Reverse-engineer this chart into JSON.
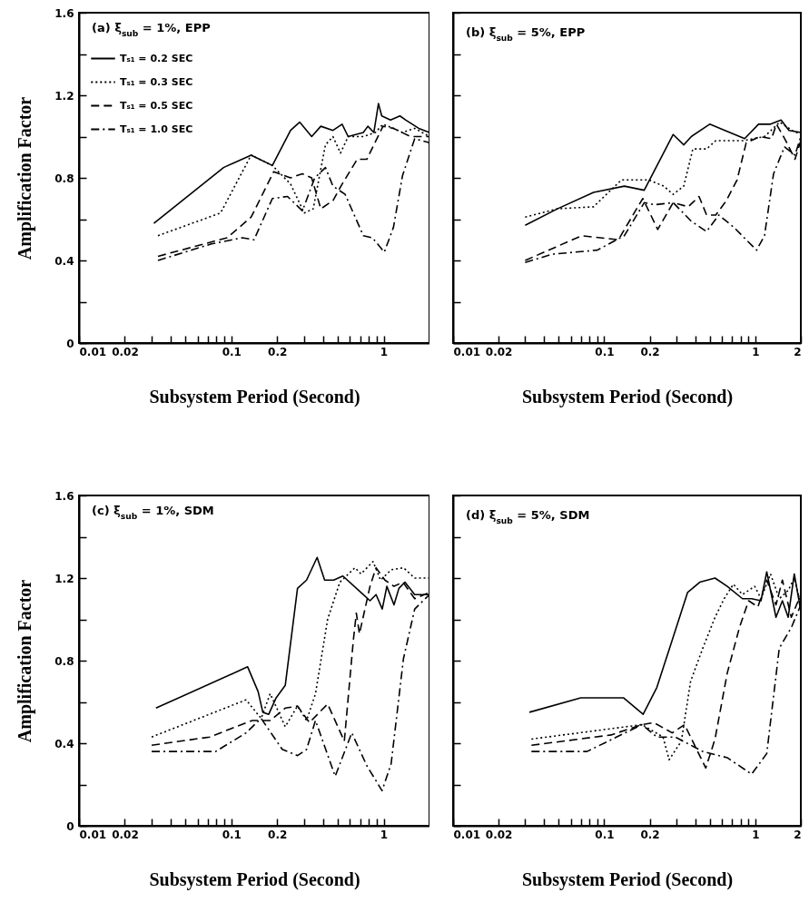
{
  "chart_data": [
    {
      "type": "line",
      "title": "(a) ξ$_{sub}$ = 1%, EPP",
      "xlabel": "Subsystem Period (Second)",
      "ylabel": "Amplification Factor",
      "log": "x",
      "legend": "top left",
      "xlim": [
        0.01,
        2
      ],
      "ylim": [
        0,
        1.6
      ],
      "xticks": [
        0.01,
        0.02,
        {
          "value": 0.03,
          "label": null
        },
        {
          "value": 0.04,
          "label": null
        },
        {
          "value": 0.05,
          "label": null
        },
        {
          "value": 0.06,
          "label": null
        },
        {
          "value": 0.07,
          "label": null
        },
        {
          "value": 0.08,
          "label": null
        },
        {
          "value": 0.09,
          "label": null
        },
        0.1,
        0.2,
        {
          "value": 0.3,
          "label": null
        },
        {
          "value": 0.4,
          "label": null
        },
        {
          "value": 0.5,
          "label": null
        },
        {
          "value": 0.6,
          "label": null
        },
        {
          "value": 0.7,
          "label": null
        },
        {
          "value": 0.8,
          "label": null
        },
        {
          "value": 0.9,
          "label": null
        },
        1
      ],
      "yticks": [
        0,
        {
          "value": 0.2,
          "label": null
        },
        0.4,
        {
          "value": 0.6,
          "label": null
        },
        0.8,
        {
          "value": 1.0,
          "label": null
        },
        1.2,
        {
          "value": 1.4,
          "label": null
        },
        1.6
      ],
      "series": [
        {
          "name": "Tₛ₁ = 0.2 SEC",
          "color": "#000000",
          "line_style": "solid",
          "x": [
            0.031,
            0.089,
            0.135,
            0.186,
            0.245,
            0.281,
            0.337,
            0.387,
            0.465,
            0.534,
            0.585,
            0.736,
            0.788,
            0.863,
            0.925,
            0.972,
            1.11,
            1.28,
            1.4,
            1.7,
            2
          ],
          "values": [
            0.58,
            0.85,
            0.91,
            0.86,
            1.03,
            1.07,
            1.0,
            1.05,
            1.03,
            1.06,
            1.0,
            1.02,
            1.05,
            1.02,
            1.16,
            1.1,
            1.08,
            1.1,
            1.08,
            1.04,
            1.02
          ]
        },
        {
          "name": "Tₛ₁ = 0.3 SEC",
          "color": "#000000",
          "line_style": "dotted",
          "x": [
            0.033,
            0.085,
            0.135,
            0.186,
            0.245,
            0.301,
            0.345,
            0.415,
            0.465,
            0.521,
            0.585,
            0.736,
            0.884,
            0.99,
            1.16,
            1.33,
            1.6,
            2
          ],
          "values": [
            0.52,
            0.63,
            0.91,
            0.86,
            0.77,
            0.63,
            0.65,
            0.96,
            1.0,
            0.92,
            1.0,
            1.0,
            1.02,
            1.06,
            1.04,
            1.02,
            1.04,
            1.0
          ]
        },
        {
          "name": "Tₛ₁ = 0.5 SEC",
          "color": "#000000",
          "line_style": "dashed",
          "x": [
            0.033,
            0.094,
            0.135,
            0.19,
            0.245,
            0.293,
            0.337,
            0.387,
            0.465,
            0.534,
            0.671,
            0.776,
            0.99,
            1.16,
            1.5,
            2
          ],
          "values": [
            0.42,
            0.51,
            0.61,
            0.83,
            0.8,
            0.82,
            0.8,
            0.65,
            0.69,
            0.77,
            0.89,
            0.89,
            1.05,
            1.04,
            1.0,
            1.0
          ]
        },
        {
          "name": "Tₛ₁ = 1.0 SEC",
          "color": "#000000",
          "line_style": "dashdot",
          "x": [
            0.033,
            0.074,
            0.118,
            0.141,
            0.186,
            0.234,
            0.293,
            0.353,
            0.415,
            0.465,
            0.559,
            0.736,
            0.844,
            1.01,
            1.16,
            1.33,
            1.6,
            2
          ],
          "values": [
            0.4,
            0.48,
            0.51,
            0.5,
            0.7,
            0.71,
            0.64,
            0.8,
            0.85,
            0.76,
            0.72,
            0.52,
            0.51,
            0.44,
            0.56,
            0.81,
            0.99,
            0.97
          ]
        }
      ]
    },
    {
      "type": "line",
      "title": "(b) ξ$_{sub}$ = 5%, EPP",
      "xlabel": "Subsystem Period (Second)",
      "log": "x",
      "tick_labels": "x",
      "xlim": [
        0.01,
        2
      ],
      "ylim": [
        0,
        1.6
      ],
      "xticks": [
        0.01,
        0.02,
        {
          "value": 0.03,
          "label": null
        },
        {
          "value": 0.04,
          "label": null
        },
        {
          "value": 0.05,
          "label": null
        },
        {
          "value": 0.06,
          "label": null
        },
        {
          "value": 0.07,
          "label": null
        },
        {
          "value": 0.08,
          "label": null
        },
        {
          "value": 0.09,
          "label": null
        },
        0.1,
        0.2,
        {
          "value": 0.3,
          "label": null
        },
        {
          "value": 0.4,
          "label": null
        },
        {
          "value": 0.5,
          "label": null
        },
        {
          "value": 0.6,
          "label": null
        },
        {
          "value": 0.7,
          "label": null
        },
        {
          "value": 0.8,
          "label": null
        },
        {
          "value": 0.9,
          "label": null
        },
        1,
        2
      ],
      "yticks": [
        0,
        0.2,
        0.4,
        0.6,
        0.8,
        1.0,
        1.2,
        1.4,
        1.6
      ],
      "series": [
        {
          "color": "#000000",
          "line_style": "solid",
          "x": [
            0.03,
            0.049,
            0.085,
            0.136,
            0.184,
            0.286,
            0.336,
            0.377,
            0.499,
            0.629,
            0.85,
            1.05,
            1.26,
            1.48,
            1.67,
            2
          ],
          "values": [
            0.57,
            0.65,
            0.73,
            0.76,
            0.74,
            1.01,
            0.96,
            1.0,
            1.06,
            1.03,
            0.99,
            1.06,
            1.06,
            1.08,
            1.03,
            1.02
          ]
        },
        {
          "color": "#000000",
          "line_style": "dotted",
          "x": [
            0.03,
            0.049,
            0.085,
            0.13,
            0.197,
            0.248,
            0.286,
            0.336,
            0.386,
            0.476,
            0.547,
            0.83,
            1.15,
            1.45,
            1.75,
            2
          ],
          "values": [
            0.61,
            0.65,
            0.66,
            0.79,
            0.79,
            0.76,
            0.72,
            0.76,
            0.94,
            0.94,
            0.98,
            0.98,
            1.0,
            1.07,
            1.03,
            1.01
          ]
        },
        {
          "color": "#000000",
          "line_style": "dashed",
          "x": [
            0.03,
            0.071,
            0.124,
            0.18,
            0.226,
            0.286,
            0.36,
            0.424,
            0.476,
            0.547,
            0.643,
            0.757,
            0.87,
            1.07,
            1.28,
            1.38,
            1.59,
            1.83,
            2
          ],
          "values": [
            0.4,
            0.52,
            0.5,
            0.7,
            0.55,
            0.68,
            0.66,
            0.71,
            0.62,
            0.62,
            0.69,
            0.79,
            0.97,
            1.0,
            0.99,
            1.06,
            0.98,
            0.89,
            0.98
          ]
        },
        {
          "color": "#000000",
          "line_style": "dashdot",
          "x": [
            0.03,
            0.045,
            0.09,
            0.136,
            0.184,
            0.216,
            0.286,
            0.377,
            0.476,
            0.573,
            0.723,
            0.87,
            1.02,
            1.15,
            1.32,
            1.56,
            1.83,
            2
          ],
          "values": [
            0.39,
            0.43,
            0.45,
            0.52,
            0.68,
            0.67,
            0.68,
            0.59,
            0.54,
            0.62,
            0.56,
            0.5,
            0.45,
            0.52,
            0.82,
            0.95,
            0.91,
            1.0
          ]
        }
      ]
    },
    {
      "type": "line",
      "title": "(c) ξ$_{sub}$ = 1%, SDM",
      "xlabel": "Subsystem Period (Second)",
      "ylabel": "Amplification Factor",
      "log": "x",
      "xlim": [
        0.01,
        2
      ],
      "ylim": [
        0,
        1.6
      ],
      "xticks": [
        0.01,
        0.02,
        {
          "value": 0.03,
          "label": null
        },
        {
          "value": 0.04,
          "label": null
        },
        {
          "value": 0.05,
          "label": null
        },
        {
          "value": 0.06,
          "label": null
        },
        {
          "value": 0.07,
          "label": null
        },
        {
          "value": 0.08,
          "label": null
        },
        {
          "value": 0.09,
          "label": null
        },
        0.1,
        0.2,
        {
          "value": 0.3,
          "label": null
        },
        {
          "value": 0.4,
          "label": null
        },
        {
          "value": 0.5,
          "label": null
        },
        {
          "value": 0.6,
          "label": null
        },
        {
          "value": 0.7,
          "label": null
        },
        {
          "value": 0.8,
          "label": null
        },
        {
          "value": 0.9,
          "label": null
        },
        1
      ],
      "yticks": [
        0,
        {
          "value": 0.2,
          "label": null
        },
        0.4,
        {
          "value": 0.6,
          "label": null
        },
        0.8,
        {
          "value": 1.0,
          "label": null
        },
        1.2,
        {
          "value": 1.4,
          "label": null
        },
        1.6
      ],
      "series": [
        {
          "color": "#000000",
          "line_style": "solid",
          "x": [
            0.032,
            0.128,
            0.15,
            0.161,
            0.176,
            0.197,
            0.226,
            0.272,
            0.312,
            0.366,
            0.41,
            0.47,
            0.54,
            0.71,
            0.814,
            0.892,
            0.98,
            1.05,
            1.17,
            1.26,
            1.38,
            1.6,
            2
          ],
          "values": [
            0.57,
            0.77,
            0.65,
            0.55,
            0.54,
            0.62,
            0.68,
            1.15,
            1.19,
            1.3,
            1.19,
            1.19,
            1.21,
            1.13,
            1.09,
            1.12,
            1.05,
            1.16,
            1.07,
            1.15,
            1.18,
            1.12,
            1.12
          ]
        },
        {
          "color": "#000000",
          "line_style": "dotted",
          "x": [
            0.03,
            0.125,
            0.157,
            0.18,
            0.226,
            0.272,
            0.312,
            0.357,
            0.429,
            0.516,
            0.648,
            0.71,
            0.852,
            0.955,
            1.12,
            1.35,
            1.6,
            2
          ],
          "values": [
            0.43,
            0.61,
            0.52,
            0.64,
            0.48,
            0.58,
            0.51,
            0.64,
            1.0,
            1.18,
            1.25,
            1.22,
            1.28,
            1.19,
            1.24,
            1.25,
            1.2,
            1.2
          ]
        },
        {
          "color": "#000000",
          "line_style": "dashed",
          "x": [
            0.03,
            0.072,
            0.137,
            0.157,
            0.18,
            0.226,
            0.272,
            0.326,
            0.429,
            0.552,
            0.633,
            0.662,
            0.694,
            0.814,
            0.892,
            1.02,
            1.17,
            1.34,
            1.6,
            2
          ],
          "values": [
            0.39,
            0.43,
            0.51,
            0.51,
            0.51,
            0.57,
            0.58,
            0.5,
            0.59,
            0.41,
            0.9,
            1.03,
            0.93,
            1.16,
            1.25,
            1.19,
            1.16,
            1.18,
            1.1,
            1.13
          ]
        },
        {
          "color": "#000000",
          "line_style": "dashdot",
          "x": [
            0.03,
            0.079,
            0.125,
            0.157,
            0.216,
            0.272,
            0.312,
            0.357,
            0.481,
            0.618,
            0.777,
            0.977,
            1.12,
            1.35,
            1.6,
            2
          ],
          "values": [
            0.36,
            0.36,
            0.45,
            0.52,
            0.37,
            0.34,
            0.37,
            0.51,
            0.24,
            0.45,
            0.29,
            0.17,
            0.3,
            0.81,
            1.05,
            1.12
          ]
        }
      ]
    },
    {
      "type": "line",
      "title": "(d) ξ$_{sub}$ = 5%, SDM",
      "xlabel": "Subsystem Period (Second)",
      "log": "x",
      "tick_labels": "x",
      "xlim": [
        0.01,
        2
      ],
      "ylim": [
        0,
        1.6
      ],
      "xticks": [
        0.01,
        0.02,
        {
          "value": 0.03,
          "label": null
        },
        {
          "value": 0.04,
          "label": null
        },
        {
          "value": 0.05,
          "label": null
        },
        {
          "value": 0.06,
          "label": null
        },
        {
          "value": 0.07,
          "label": null
        },
        {
          "value": 0.08,
          "label": null
        },
        {
          "value": 0.09,
          "label": null
        },
        0.1,
        0.2,
        {
          "value": 0.3,
          "label": null
        },
        {
          "value": 0.4,
          "label": null
        },
        {
          "value": 0.5,
          "label": null
        },
        {
          "value": 0.6,
          "label": null
        },
        {
          "value": 0.7,
          "label": null
        },
        {
          "value": 0.8,
          "label": null
        },
        {
          "value": 0.9,
          "label": null
        },
        1,
        2
      ],
      "yticks": [
        0,
        0.2,
        0.4,
        0.6,
        0.8,
        1.0,
        1.2,
        1.4,
        1.6
      ],
      "series": [
        {
          "color": "#000000",
          "line_style": "solid",
          "x": [
            0.032,
            0.07,
            0.134,
            0.181,
            0.223,
            0.282,
            0.356,
            0.429,
            0.541,
            0.652,
            0.822,
            0.945,
            1.09,
            1.19,
            1.37,
            1.51,
            1.65,
            1.81,
            2
          ],
          "values": [
            0.55,
            0.62,
            0.62,
            0.54,
            0.67,
            0.9,
            1.13,
            1.18,
            1.2,
            1.16,
            1.1,
            1.1,
            1.09,
            1.23,
            1.01,
            1.09,
            1.01,
            1.22,
            1.04
          ]
        },
        {
          "color": "#000000",
          "line_style": "dotted",
          "x": [
            0.033,
            0.178,
            0.245,
            0.269,
            0.324,
            0.373,
            0.449,
            0.541,
            0.622,
            0.715,
            0.822,
            0.99,
            1.09,
            1.26,
            1.44,
            1.65,
            1.81,
            2
          ],
          "values": [
            0.42,
            0.49,
            0.43,
            0.32,
            0.41,
            0.7,
            0.86,
            1.01,
            1.1,
            1.17,
            1.12,
            1.16,
            1.1,
            1.22,
            1.1,
            1.14,
            1.2,
            1.07
          ]
        },
        {
          "color": "#000000",
          "line_style": "dashed",
          "x": [
            0.033,
            0.111,
            0.178,
            0.213,
            0.282,
            0.34,
            0.47,
            0.541,
            0.652,
            0.785,
            0.903,
            1.04,
            1.19,
            1.37,
            1.51,
            1.73,
            2
          ],
          "values": [
            0.39,
            0.44,
            0.49,
            0.5,
            0.45,
            0.49,
            0.28,
            0.42,
            0.74,
            0.96,
            1.09,
            1.06,
            1.19,
            1.07,
            1.19,
            1.01,
            1.12
          ]
        },
        {
          "color": "#000000",
          "line_style": "dashdot",
          "x": [
            0.033,
            0.077,
            0.178,
            0.223,
            0.295,
            0.449,
            0.652,
            0.945,
            1.19,
            1.44,
            1.73,
            2
          ],
          "values": [
            0.36,
            0.36,
            0.49,
            0.43,
            0.43,
            0.36,
            0.33,
            0.25,
            0.35,
            0.86,
            0.96,
            1.07
          ]
        }
      ]
    }
  ]
}
